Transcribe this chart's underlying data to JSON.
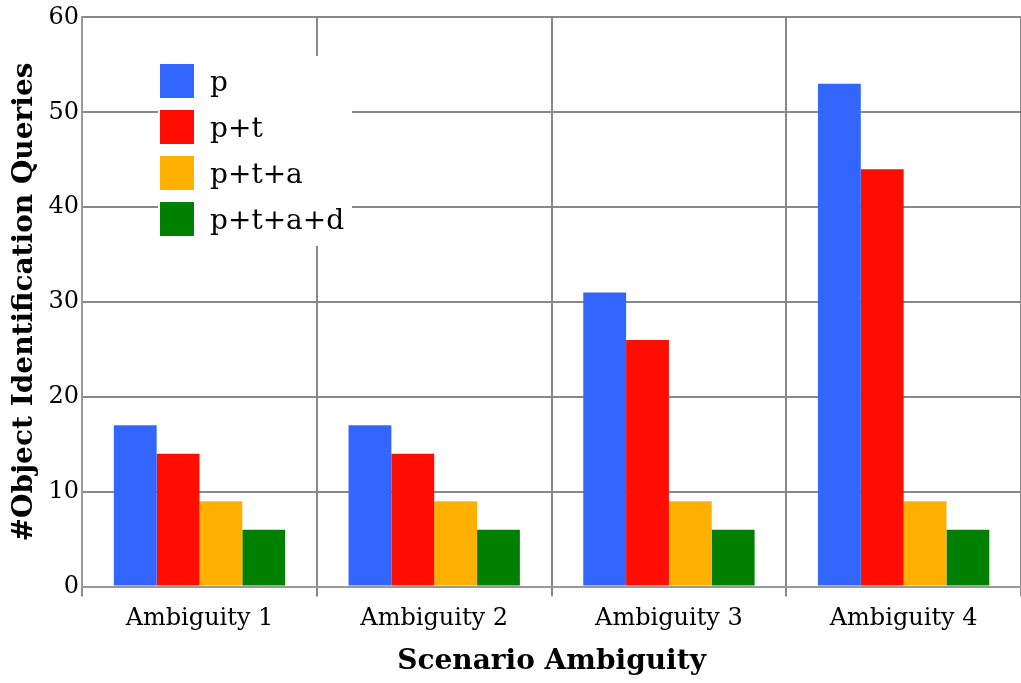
{
  "chart_data": {
    "type": "bar",
    "xlabel": "Scenario Ambiguity",
    "ylabel": "#Object Identification Queries",
    "categories": [
      "Ambiguity 1",
      "Ambiguity 2",
      "Ambiguity 3",
      "Ambiguity 4"
    ],
    "series": [
      {
        "name": "p",
        "color": "#3366ff",
        "values": [
          17,
          17,
          31,
          53
        ]
      },
      {
        "name": "p+t",
        "color": "#ff0d00",
        "values": [
          14,
          14,
          26,
          44
        ]
      },
      {
        "name": "p+t+a",
        "color": "#ffb000",
        "values": [
          9,
          9,
          9,
          9
        ]
      },
      {
        "name": "p+t+a+d",
        "color": "#008000",
        "values": [
          6,
          6,
          6,
          6
        ]
      }
    ],
    "ylim": [
      0,
      60
    ],
    "yticks": [
      0,
      10,
      20,
      30,
      40,
      50,
      60
    ],
    "grid": true,
    "legend": "top left"
  }
}
